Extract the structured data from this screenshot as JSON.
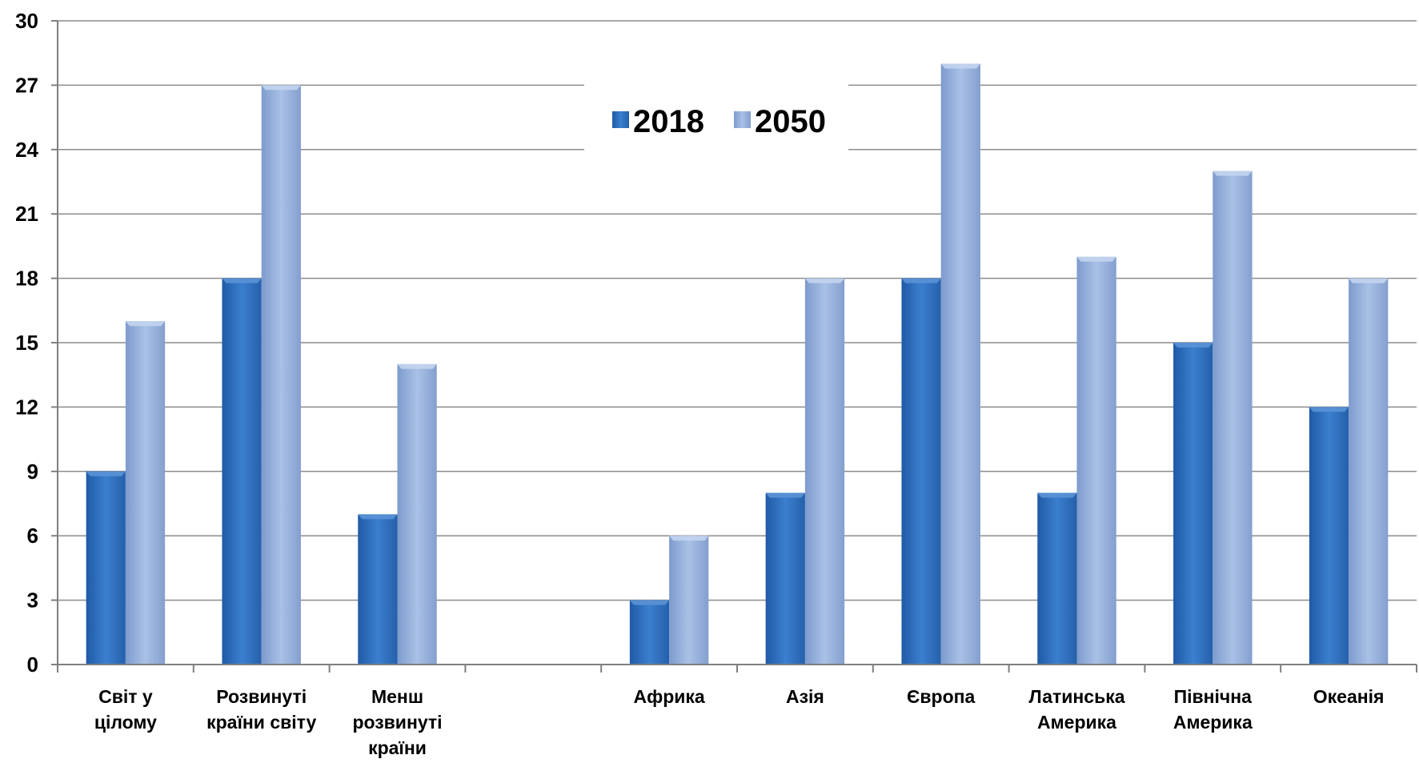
{
  "chart_data": {
    "type": "bar",
    "title": "",
    "xlabel": "",
    "ylabel": "",
    "ylim": [
      0,
      30
    ],
    "yticks": [
      0,
      3,
      6,
      9,
      12,
      15,
      18,
      21,
      24,
      27,
      30
    ],
    "grid": true,
    "legend_position": "top-center",
    "categories": [
      [
        "Світ у",
        "цілому"
      ],
      [
        "Розвинуті",
        "країни світу"
      ],
      [
        "Менш",
        "розвинуті",
        "країни"
      ],
      [
        ""
      ],
      [
        "Африка"
      ],
      [
        "Азія"
      ],
      [
        "Європа"
      ],
      [
        "Латинська",
        "Америка"
      ],
      [
        "Північна",
        "Америка"
      ],
      [
        "Океанія"
      ]
    ],
    "series": [
      {
        "name": "2018",
        "color": "#2e6db5",
        "values": [
          9,
          18,
          7,
          null,
          3,
          8,
          18,
          8,
          15,
          12
        ]
      },
      {
        "name": "2050",
        "color": "#8fabd8",
        "values": [
          16,
          27,
          14,
          null,
          6,
          18,
          28,
          19,
          23,
          18
        ]
      }
    ]
  }
}
